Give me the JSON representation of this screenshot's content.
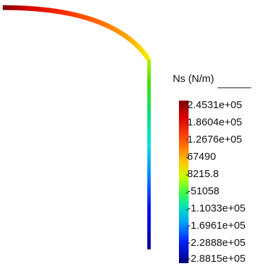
{
  "legend": {
    "title": "Ns (N/m)",
    "colormap": "jet",
    "colors": [
      "#00007f",
      "#0000ff",
      "#00ffff",
      "#00ff00",
      "#ffff00",
      "#ff0000",
      "#7f0000"
    ],
    "labels": [
      "2.4531e+05",
      "1.8604e+05",
      "1.2676e+05",
      "67490",
      "8215.8",
      "-51058",
      "-1.1033e+05",
      "-1.6961e+05",
      "-2.2888e+05",
      "-2.8815e+05"
    ],
    "range": [
      -288150,
      245310
    ]
  },
  "shell_result": {
    "description_units": "N/m",
    "arc_values_start_to_end": [
      245310,
      200000,
      150000,
      100000,
      50000,
      20000
    ],
    "wall_values_top_to_bottom": [
      5000,
      -50000,
      -130000,
      -200000,
      -288150
    ]
  }
}
